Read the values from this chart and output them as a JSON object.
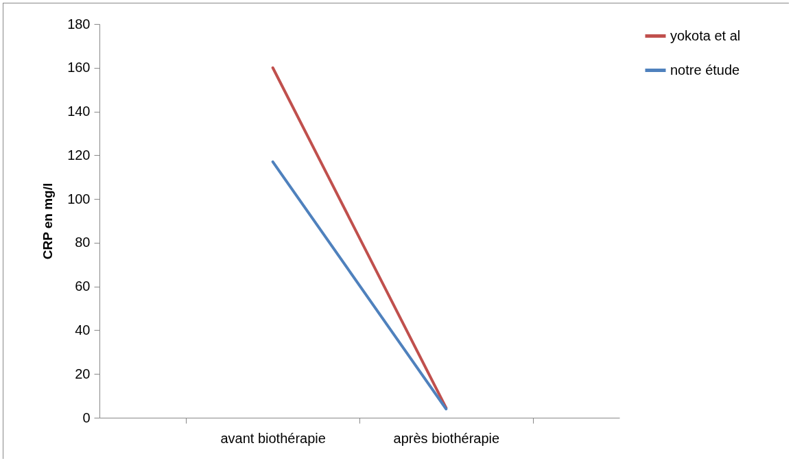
{
  "chart_data": {
    "type": "line",
    "ylabel": "CRP en mg/l",
    "categories": [
      "avant biothérapie",
      "après biothérapie"
    ],
    "series": [
      {
        "name": "yokota et al",
        "color": "#c0504d",
        "values": [
          160,
          4.5
        ]
      },
      {
        "name": "notre étude",
        "color": "#4f81bd",
        "values": [
          117,
          4
        ]
      }
    ],
    "ylim": [
      0,
      180
    ],
    "yticks": [
      0,
      20,
      40,
      60,
      80,
      100,
      120,
      140,
      160,
      180
    ],
    "grid": false,
    "legend": "right",
    "marker": "none",
    "line_style": "solid"
  }
}
